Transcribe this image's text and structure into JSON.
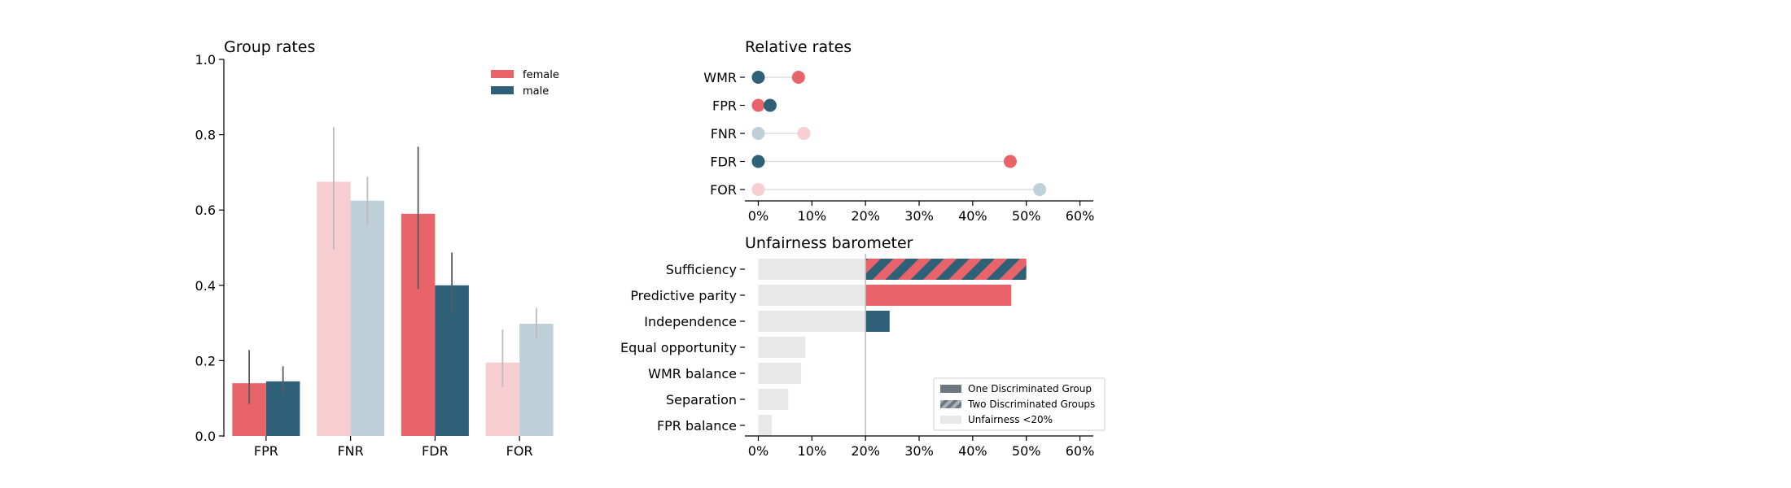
{
  "colors": {
    "female": "#E8636A",
    "male": "#2E6078",
    "female_light": "#F6CDD0",
    "male_light": "#C0D0D8",
    "neutral": "#E8E8E8",
    "err_dark": "#5A5A5A",
    "err_light": "#BBBBBB"
  },
  "chart_data": [
    {
      "type": "bar",
      "title": "Group rates",
      "categories": [
        "FPR",
        "FNR",
        "FDR",
        "FOR"
      ],
      "ylim": [
        0,
        1.0
      ],
      "yticks": [
        "0.0",
        "0.2",
        "0.4",
        "0.6",
        "0.8",
        "1.0"
      ],
      "legend": {
        "position": "top-right",
        "entries": [
          "female",
          "male"
        ]
      },
      "series": [
        {
          "name": "female",
          "values": [
            0.14,
            0.675,
            0.59,
            0.195
          ],
          "err_low": [
            0.085,
            0.495,
            0.39,
            0.13
          ],
          "err_high": [
            0.228,
            0.82,
            0.768,
            0.283
          ],
          "highlight": [
            true,
            false,
            true,
            false
          ]
        },
        {
          "name": "male",
          "values": [
            0.145,
            0.625,
            0.4,
            0.298
          ],
          "err_low": [
            0.113,
            0.56,
            0.323,
            0.258
          ],
          "err_high": [
            0.185,
            0.688,
            0.487,
            0.34
          ],
          "highlight": [
            true,
            false,
            true,
            false
          ]
        }
      ]
    },
    {
      "type": "scatter",
      "title": "Relative rates",
      "categories": [
        "WMR",
        "FPR",
        "FNR",
        "FDR",
        "FOR"
      ],
      "xlim": [
        -0.025,
        0.625
      ],
      "xticks": [
        "0%",
        "10%",
        "20%",
        "30%",
        "40%",
        "50%",
        "60%"
      ],
      "series": [
        {
          "name": "female",
          "values": [
            0.075,
            0.0,
            0.085,
            0.47,
            0.0
          ],
          "highlight": [
            true,
            true,
            false,
            true,
            false
          ]
        },
        {
          "name": "male",
          "values": [
            0.0,
            0.022,
            0.0,
            0.0,
            0.525
          ],
          "highlight": [
            true,
            true,
            false,
            true,
            false
          ]
        }
      ]
    },
    {
      "type": "bar",
      "orientation": "horizontal",
      "title": "Unfairness barometer",
      "categories": [
        "Sufficiency",
        "Predictive parity",
        "Independence",
        "Equal opportunity",
        "WMR balance",
        "Separation",
        "FPR balance"
      ],
      "values": [
        0.5,
        0.472,
        0.245,
        0.088,
        0.08,
        0.056,
        0.025
      ],
      "kind": [
        "two",
        "female",
        "male",
        "none",
        "none",
        "none",
        "none"
      ],
      "threshold": 0.2,
      "xlim": [
        -0.025,
        0.625
      ],
      "xticks": [
        "0%",
        "10%",
        "20%",
        "30%",
        "40%",
        "50%",
        "60%"
      ],
      "legend": {
        "position": "bottom-right",
        "entries": [
          "One Discriminated Group",
          "Two Discriminated Groups",
          "Unfairness <20%"
        ]
      }
    }
  ]
}
